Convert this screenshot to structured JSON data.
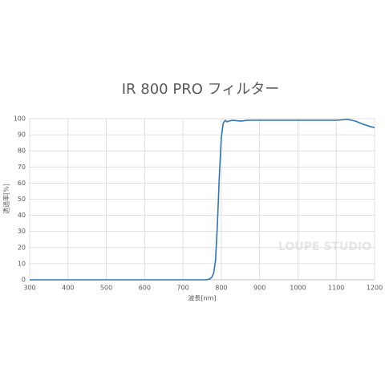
{
  "chart_data": {
    "type": "line",
    "title": "IR 800 PRO フィルター",
    "x_label": "波長[nm]",
    "y_label": "透過率[%]",
    "watermark": "LOUPE STUDIO",
    "x": [
      300,
      400,
      500,
      600,
      700,
      750,
      760,
      770,
      775,
      780,
      785,
      790,
      795,
      800,
      805,
      810,
      815,
      820,
      830,
      850,
      870,
      900,
      1000,
      1050,
      1100,
      1130,
      1150,
      1170,
      1190,
      1200
    ],
    "values": [
      0,
      0,
      0,
      0,
      0,
      0,
      0,
      0.5,
      1.5,
      4,
      12,
      35,
      65,
      88,
      97,
      99,
      98,
      98.5,
      99,
      98.5,
      99,
      99,
      99,
      99,
      99,
      99.5,
      98.5,
      96.5,
      95,
      94.5
    ],
    "color": "#2e75b6",
    "xlim": [
      300,
      1200
    ],
    "xticks": [
      300,
      400,
      500,
      600,
      700,
      800,
      900,
      1000,
      1100,
      1200
    ],
    "ylim": [
      0,
      100
    ],
    "yticks": [
      0,
      10,
      20,
      30,
      40,
      50,
      60,
      70,
      80,
      90,
      100
    ],
    "grid": true
  }
}
